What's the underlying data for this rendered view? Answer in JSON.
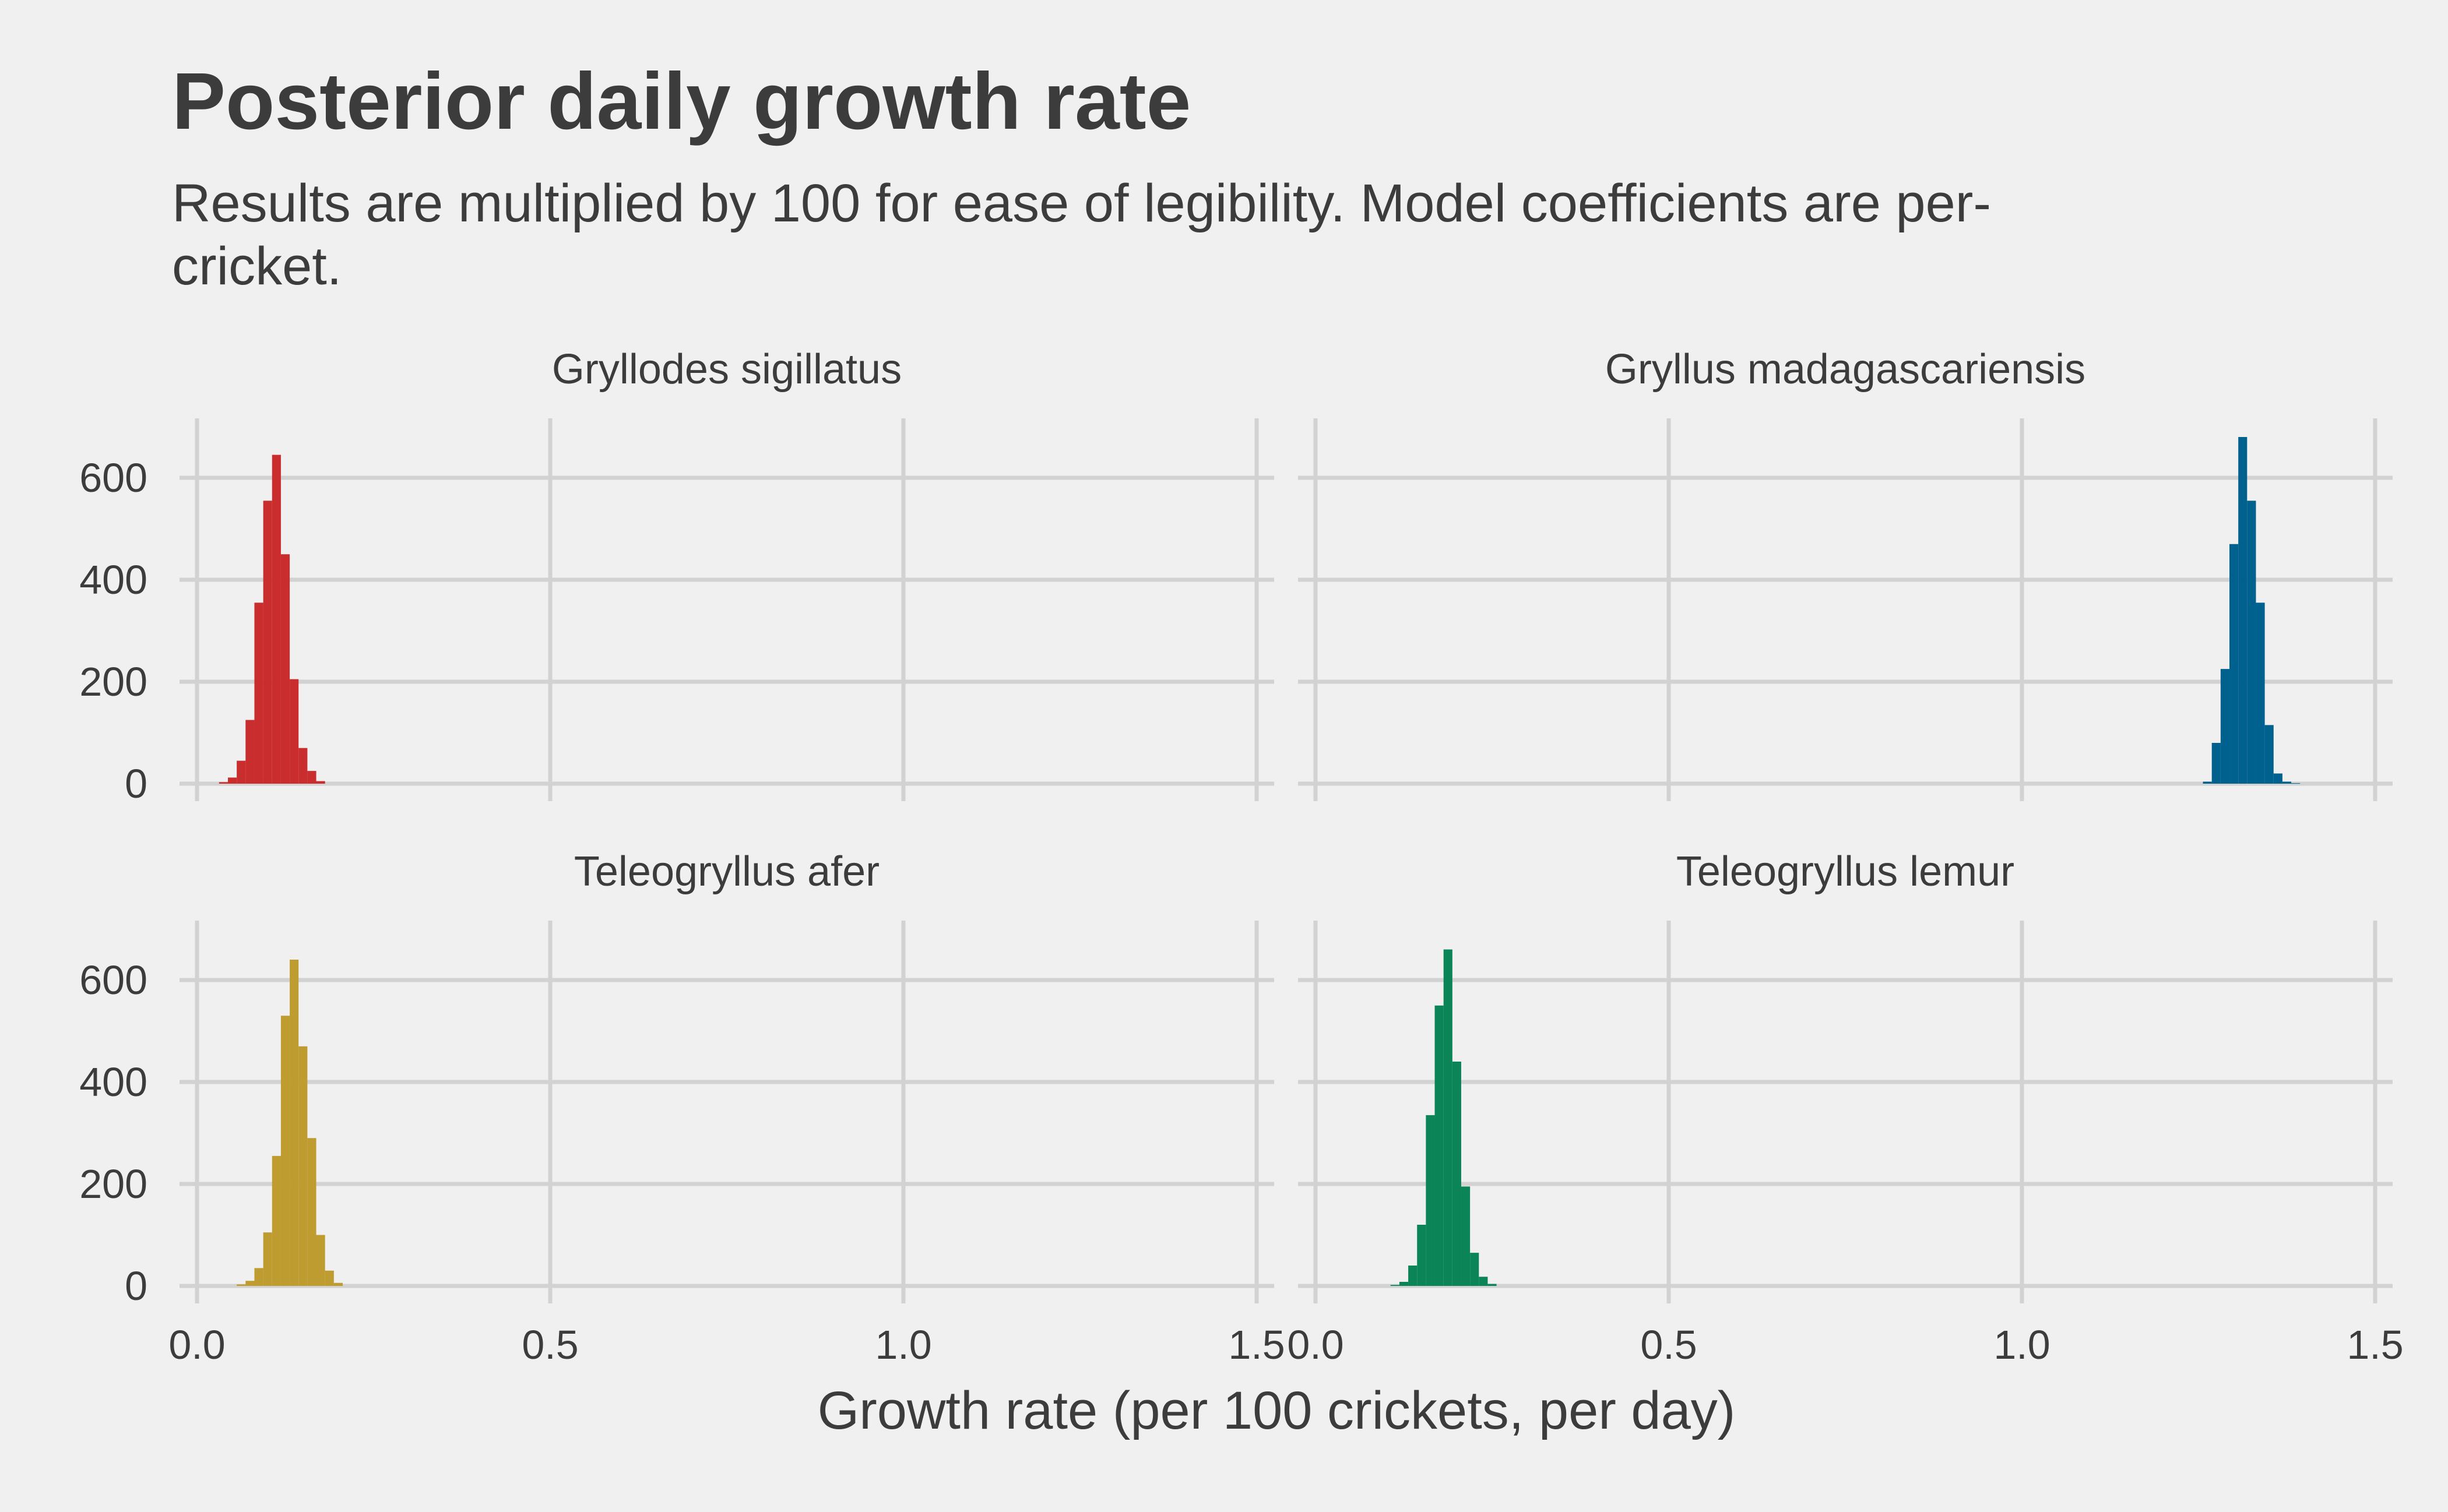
{
  "chart_data": {
    "type": "bar",
    "title": "Posterior daily growth rate",
    "subtitle": "Results are multiplied by 100 for ease of legibility. Model coefficients are per-cricket.",
    "xlabel": "Growth rate (per 100 crickets, per day)",
    "ylabel": "",
    "xlim": [
      0,
      1.5
    ],
    "ylim": [
      0,
      700
    ],
    "x_ticks": [
      0,
      0.5,
      1,
      1.5
    ],
    "x_tick_labels": [
      "0.0",
      "0.5",
      "1.0",
      "1.5"
    ],
    "y_ticks": [
      0,
      200,
      400,
      600
    ],
    "y_tick_labels": [
      "0",
      "200",
      "400",
      "600"
    ],
    "grid": true,
    "bin_width": 0.0125,
    "facets": [
      {
        "name": "Gryllodes sigillatus",
        "color": "#c92d2d",
        "bins": [
          {
            "x": 0.0375,
            "count": 3
          },
          {
            "x": 0.05,
            "count": 12
          },
          {
            "x": 0.0625,
            "count": 45
          },
          {
            "x": 0.075,
            "count": 125
          },
          {
            "x": 0.0875,
            "count": 355
          },
          {
            "x": 0.1,
            "count": 555
          },
          {
            "x": 0.1125,
            "count": 645
          },
          {
            "x": 0.125,
            "count": 450
          },
          {
            "x": 0.1375,
            "count": 205
          },
          {
            "x": 0.15,
            "count": 70
          },
          {
            "x": 0.1625,
            "count": 25
          },
          {
            "x": 0.175,
            "count": 5
          }
        ]
      },
      {
        "name": "Gryllus madagascariensis",
        "color": "#00618f",
        "bins": [
          {
            "x": 1.2625,
            "count": 4
          },
          {
            "x": 1.275,
            "count": 80
          },
          {
            "x": 1.2875,
            "count": 225
          },
          {
            "x": 1.3,
            "count": 470
          },
          {
            "x": 1.3125,
            "count": 680
          },
          {
            "x": 1.325,
            "count": 555
          },
          {
            "x": 1.3375,
            "count": 355
          },
          {
            "x": 1.35,
            "count": 115
          },
          {
            "x": 1.3625,
            "count": 20
          },
          {
            "x": 1.375,
            "count": 4
          },
          {
            "x": 1.3875,
            "count": 1
          }
        ]
      },
      {
        "name": "Teleogryllus afer",
        "color": "#bf9c30",
        "bins": [
          {
            "x": 0.0625,
            "count": 3
          },
          {
            "x": 0.075,
            "count": 10
          },
          {
            "x": 0.0875,
            "count": 35
          },
          {
            "x": 0.1,
            "count": 105
          },
          {
            "x": 0.1125,
            "count": 255
          },
          {
            "x": 0.125,
            "count": 530
          },
          {
            "x": 0.1375,
            "count": 640
          },
          {
            "x": 0.15,
            "count": 470
          },
          {
            "x": 0.1625,
            "count": 290
          },
          {
            "x": 0.175,
            "count": 100
          },
          {
            "x": 0.1875,
            "count": 30
          },
          {
            "x": 0.2,
            "count": 6
          }
        ]
      },
      {
        "name": "Teleogryllus lemur",
        "color": "#0b8558",
        "bins": [
          {
            "x": 0.1125,
            "count": 2
          },
          {
            "x": 0.125,
            "count": 8
          },
          {
            "x": 0.1375,
            "count": 40
          },
          {
            "x": 0.15,
            "count": 120
          },
          {
            "x": 0.1625,
            "count": 335
          },
          {
            "x": 0.175,
            "count": 550
          },
          {
            "x": 0.1875,
            "count": 660
          },
          {
            "x": 0.2,
            "count": 440
          },
          {
            "x": 0.2125,
            "count": 195
          },
          {
            "x": 0.225,
            "count": 65
          },
          {
            "x": 0.2375,
            "count": 18
          },
          {
            "x": 0.25,
            "count": 4
          }
        ]
      }
    ]
  }
}
